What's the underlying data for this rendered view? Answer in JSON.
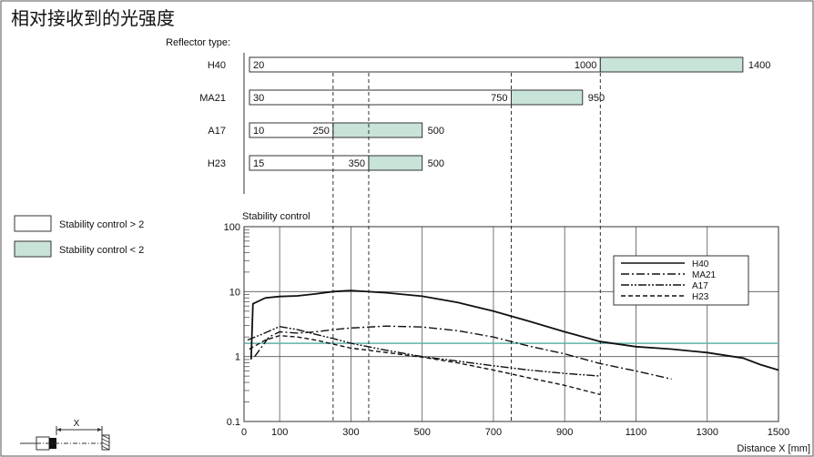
{
  "title": "相对接收到的光强度",
  "reflector_header": "Reflector type:",
  "legend_boxes": [
    {
      "label": "Stability control > 2",
      "color": "#ffffff"
    },
    {
      "label": "Stability control < 2",
      "color": "#c8e3d8"
    }
  ],
  "colors": {
    "green": "#c8e3d8",
    "cyan_line": "#5fb3a8",
    "frame": "#555555"
  },
  "icons": [
    "sensor-diagram-icon"
  ],
  "diagram_label": "X",
  "chart_data": [
    {
      "type": "bar",
      "description_type": "range-bars",
      "xlim": [
        0,
        1500
      ],
      "reflectors": [
        {
          "name": "H40",
          "min": 20,
          "threshold": 1000,
          "max": 1400,
          "min_label": "20",
          "threshold_label": "1000",
          "max_label": "1400"
        },
        {
          "name": "MA21",
          "min": 30,
          "threshold": 750,
          "max": 950,
          "min_label": "30",
          "threshold_label": "750",
          "max_label": "950"
        },
        {
          "name": "A17",
          "min": 10,
          "threshold": 250,
          "max": 500,
          "min_label": "10",
          "threshold_label": "250",
          "max_label": "500"
        },
        {
          "name": "H23",
          "min": 15,
          "threshold": 350,
          "max": 500,
          "min_label": "15",
          "threshold_label": "350",
          "max_label": "500"
        }
      ]
    },
    {
      "type": "line",
      "ylabel": "Stability control",
      "xlabel": "Distance X [mm]",
      "xlim": [
        0,
        1500
      ],
      "ylim": [
        0.1,
        100
      ],
      "yscale": "log",
      "grid": true,
      "legend_position": "top-right",
      "x_ticks": [
        "0",
        "100",
        "300",
        "500",
        "700",
        "900",
        "1100",
        "1300",
        "1500"
      ],
      "x_tick_values": [
        0,
        100,
        300,
        500,
        700,
        900,
        1100,
        1300,
        1500
      ],
      "y_ticks": [
        "0.1",
        "1",
        "10",
        "100"
      ],
      "y_tick_values": [
        0.1,
        1,
        10,
        100
      ],
      "reference_line": 1.6,
      "series": [
        {
          "name": "H40",
          "style": "solid",
          "points": [
            [
              20,
              0.9
            ],
            [
              25,
              6.5
            ],
            [
              60,
              8
            ],
            [
              100,
              8.4
            ],
            [
              150,
              8.6
            ],
            [
              200,
              9.2
            ],
            [
              250,
              10
            ],
            [
              300,
              10.4
            ],
            [
              400,
              9.6
            ],
            [
              500,
              8.5
            ],
            [
              600,
              6.8
            ],
            [
              700,
              5
            ],
            [
              800,
              3.5
            ],
            [
              900,
              2.4
            ],
            [
              1000,
              1.7
            ],
            [
              1100,
              1.42
            ],
            [
              1200,
              1.3
            ],
            [
              1300,
              1.15
            ],
            [
              1400,
              0.95
            ],
            [
              1450,
              0.75
            ],
            [
              1500,
              0.62
            ]
          ]
        },
        {
          "name": "MA21",
          "style": "dashdot",
          "points": [
            [
              30,
              1
            ],
            [
              70,
              2
            ],
            [
              100,
              2.4
            ],
            [
              150,
              2.3
            ],
            [
              200,
              2.4
            ],
            [
              250,
              2.6
            ],
            [
              300,
              2.75
            ],
            [
              400,
              2.95
            ],
            [
              500,
              2.85
            ],
            [
              600,
              2.5
            ],
            [
              700,
              2
            ],
            [
              800,
              1.45
            ],
            [
              900,
              1.1
            ],
            [
              1000,
              0.78
            ],
            [
              1100,
              0.6
            ],
            [
              1200,
              0.45
            ]
          ]
        },
        {
          "name": "A17",
          "style": "dashdotdot",
          "points": [
            [
              10,
              1.8
            ],
            [
              50,
              2.2
            ],
            [
              100,
              2.9
            ],
            [
              150,
              2.6
            ],
            [
              200,
              2.2
            ],
            [
              250,
              1.9
            ],
            [
              300,
              1.6
            ],
            [
              400,
              1.25
            ],
            [
              500,
              1
            ],
            [
              600,
              0.85
            ],
            [
              700,
              0.72
            ],
            [
              800,
              0.62
            ],
            [
              900,
              0.55
            ],
            [
              1000,
              0.5
            ]
          ]
        },
        {
          "name": "H23",
          "style": "dashed",
          "points": [
            [
              15,
              1.3
            ],
            [
              60,
              1.8
            ],
            [
              100,
              2.1
            ],
            [
              150,
              2
            ],
            [
              200,
              1.8
            ],
            [
              300,
              1.35
            ],
            [
              400,
              1.15
            ],
            [
              500,
              0.98
            ],
            [
              600,
              0.8
            ],
            [
              700,
              0.62
            ],
            [
              800,
              0.47
            ],
            [
              900,
              0.36
            ],
            [
              1000,
              0.26
            ]
          ]
        }
      ]
    }
  ]
}
